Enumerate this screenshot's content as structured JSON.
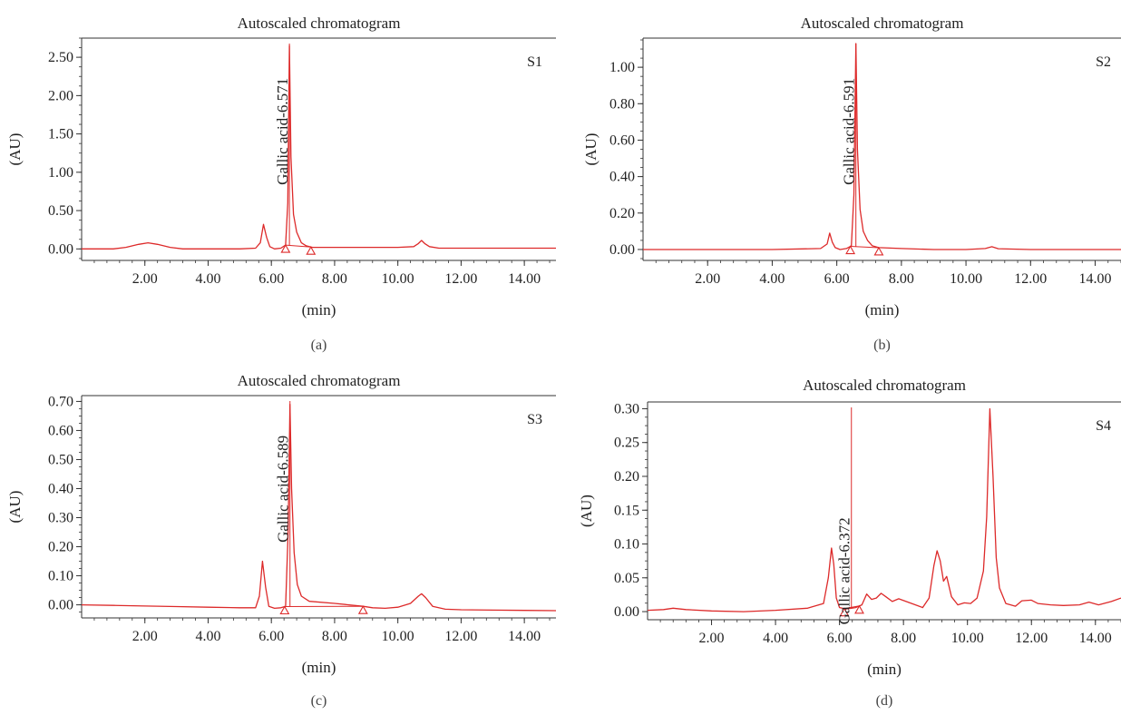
{
  "chart_data": [
    {
      "type": "line",
      "title": "Autoscaled chromatogram",
      "xlabel": "(min)",
      "ylabel": "(AU)",
      "panel_label": "(a)",
      "sample_label": "S1",
      "xlim": [
        0,
        15
      ],
      "ylim": [
        -0.15,
        2.75
      ],
      "xticks": [
        2,
        4,
        6,
        8,
        10,
        12,
        14
      ],
      "xtick_labels": [
        "2.00",
        "4.00",
        "6.00",
        "8.00",
        "10.00",
        "12.00",
        "14.00"
      ],
      "yticks": [
        0,
        0.5,
        1.0,
        1.5,
        2.0,
        2.5
      ],
      "ytick_labels": [
        "0.00",
        "0.50",
        "1.00",
        "1.50",
        "2.00",
        "2.50"
      ],
      "peak_annotation": {
        "text": "Gallic acid-6.571",
        "x": 6.571
      },
      "markers": [
        6.45,
        7.25
      ],
      "series": [
        {
          "x": [
            0,
            0.6,
            1.0,
            1.4,
            1.8,
            2.1,
            2.4,
            2.8,
            3.2,
            4.0,
            5.0,
            5.5,
            5.65,
            5.75,
            5.85,
            5.95,
            6.1,
            6.3,
            6.45,
            6.52,
            6.571,
            6.62,
            6.7,
            6.8,
            6.95,
            7.1,
            7.3,
            8.0,
            9.0,
            10.0,
            10.5,
            10.65,
            10.75,
            10.85,
            11.0,
            11.3,
            12.0,
            13.0,
            14.0,
            15.0
          ],
          "y": [
            0.0,
            0.0,
            0.0,
            0.02,
            0.06,
            0.08,
            0.06,
            0.02,
            0.0,
            0.0,
            0.0,
            0.01,
            0.08,
            0.32,
            0.15,
            0.03,
            0.0,
            0.01,
            0.05,
            0.6,
            2.65,
            1.2,
            0.45,
            0.22,
            0.08,
            0.04,
            0.02,
            0.02,
            0.02,
            0.02,
            0.03,
            0.07,
            0.11,
            0.07,
            0.03,
            0.01,
            0.01,
            0.01,
            0.01,
            0.01
          ]
        }
      ]
    },
    {
      "type": "line",
      "title": "Autoscaled chromatogram",
      "xlabel": "(min)",
      "ylabel": "(AU)",
      "panel_label": "(b)",
      "sample_label": "S2",
      "xlim": [
        0,
        14.8
      ],
      "ylim": [
        -0.06,
        1.16
      ],
      "xticks": [
        2,
        4,
        6,
        8,
        10,
        12,
        14
      ],
      "xtick_labels": [
        "2.00",
        "4.00",
        "6.00",
        "8.00",
        "10.00",
        "12.00",
        "14.00"
      ],
      "yticks": [
        0,
        0.2,
        0.4,
        0.6,
        0.8,
        1.0
      ],
      "ytick_labels": [
        "0.00",
        "0.20",
        "0.40",
        "0.60",
        "0.80",
        "1.00"
      ],
      "peak_annotation": {
        "text": "Gallic acid-6.591",
        "x": 6.591
      },
      "markers": [
        6.42,
        7.3
      ],
      "series": [
        {
          "x": [
            0,
            2.0,
            4.0,
            5.5,
            5.7,
            5.78,
            5.86,
            5.95,
            6.1,
            6.3,
            6.45,
            6.53,
            6.591,
            6.64,
            6.72,
            6.82,
            6.95,
            7.1,
            7.3,
            8.0,
            9.0,
            10.0,
            10.6,
            10.8,
            11.0,
            12.0,
            13.0,
            14.8
          ],
          "y": [
            0.0,
            0.0,
            0.0,
            0.005,
            0.03,
            0.09,
            0.04,
            0.01,
            0.0,
            0.005,
            0.02,
            0.3,
            1.13,
            0.55,
            0.22,
            0.1,
            0.05,
            0.02,
            0.01,
            0.005,
            0.0,
            0.0,
            0.005,
            0.015,
            0.004,
            0.0,
            0.0,
            0.0
          ]
        }
      ]
    },
    {
      "type": "line",
      "title": "Autoscaled chromatogram",
      "xlabel": "(min)",
      "ylabel": "(AU)",
      "panel_label": "(c)",
      "sample_label": "S3",
      "xlim": [
        0,
        15
      ],
      "ylim": [
        -0.045,
        0.72
      ],
      "xticks": [
        2,
        4,
        6,
        8,
        10,
        12,
        14
      ],
      "xtick_labels": [
        "2.00",
        "4.00",
        "6.00",
        "8.00",
        "10.00",
        "12.00",
        "14.00"
      ],
      "yticks": [
        0,
        0.1,
        0.2,
        0.3,
        0.4,
        0.5,
        0.6,
        0.7
      ],
      "ytick_labels": [
        "0.00",
        "0.10",
        "0.20",
        "0.30",
        "0.40",
        "0.50",
        "0.60",
        "0.70"
      ],
      "peak_annotation": {
        "text": "Gallic acid-6.589",
        "x": 6.589
      },
      "markers": [
        6.42,
        8.9
      ],
      "series": [
        {
          "x": [
            0,
            1.0,
            2.0,
            3.0,
            4.0,
            5.0,
            5.5,
            5.62,
            5.72,
            5.82,
            5.92,
            6.1,
            6.3,
            6.45,
            6.53,
            6.589,
            6.64,
            6.72,
            6.82,
            6.95,
            7.2,
            8.0,
            8.9,
            9.2,
            9.6,
            10.0,
            10.4,
            10.65,
            10.75,
            10.88,
            11.1,
            11.5,
            12.0,
            13.0,
            14.0,
            15.0
          ],
          "y": [
            0.0,
            -0.002,
            -0.004,
            -0.006,
            -0.008,
            -0.01,
            -0.01,
            0.03,
            0.15,
            0.06,
            -0.005,
            -0.012,
            -0.01,
            -0.005,
            0.25,
            0.69,
            0.4,
            0.18,
            0.07,
            0.03,
            0.012,
            0.005,
            -0.005,
            -0.01,
            -0.012,
            -0.008,
            0.005,
            0.03,
            0.038,
            0.025,
            -0.005,
            -0.015,
            -0.017,
            -0.018,
            -0.019,
            -0.02
          ]
        }
      ]
    },
    {
      "type": "line",
      "title": "Autoscaled chromatogram",
      "xlabel": "(min)",
      "ylabel": "(AU)",
      "panel_label": "(d)",
      "sample_label": "S4",
      "xlim": [
        0,
        14.8
      ],
      "ylim": [
        -0.012,
        0.31
      ],
      "xticks": [
        2,
        4,
        6,
        8,
        10,
        12,
        14
      ],
      "xtick_labels": [
        "2.00",
        "4.00",
        "6.00",
        "8.00",
        "10.00",
        "12.00",
        "14.00"
      ],
      "yticks": [
        0,
        0.05,
        0.1,
        0.15,
        0.2,
        0.25,
        0.3
      ],
      "ytick_labels": [
        "0.00",
        "0.05",
        "0.10",
        "0.15",
        "0.20",
        "0.25",
        "0.30"
      ],
      "peak_annotation": {
        "text": "Gallic acid-6.372",
        "x": 6.372
      },
      "markers": [
        6.15,
        6.62
      ],
      "series": [
        {
          "x": [
            0,
            0.5,
            0.8,
            1.2,
            2.0,
            3.0,
            4.0,
            5.0,
            5.5,
            5.65,
            5.75,
            5.82,
            5.9,
            6.0,
            6.2,
            6.372,
            6.5,
            6.7,
            6.85,
            7.0,
            7.15,
            7.3,
            7.45,
            7.65,
            7.85,
            8.2,
            8.6,
            8.8,
            8.95,
            9.05,
            9.15,
            9.25,
            9.35,
            9.5,
            9.7,
            9.9,
            10.1,
            10.3,
            10.5,
            10.6,
            10.7,
            10.8,
            10.9,
            11.0,
            11.2,
            11.5,
            11.7,
            12.0,
            12.2,
            12.6,
            13.0,
            13.5,
            13.8,
            14.1,
            14.5,
            14.8
          ],
          "y": [
            0.002,
            0.003,
            0.005,
            0.003,
            0.001,
            0.0,
            0.002,
            0.005,
            0.012,
            0.05,
            0.094,
            0.07,
            0.02,
            0.006,
            0.004,
            0.005,
            0.006,
            0.01,
            0.026,
            0.018,
            0.02,
            0.027,
            0.022,
            0.015,
            0.019,
            0.013,
            0.006,
            0.02,
            0.068,
            0.09,
            0.075,
            0.045,
            0.052,
            0.022,
            0.01,
            0.013,
            0.012,
            0.02,
            0.06,
            0.14,
            0.3,
            0.2,
            0.08,
            0.035,
            0.012,
            0.008,
            0.016,
            0.017,
            0.012,
            0.01,
            0.009,
            0.01,
            0.014,
            0.01,
            0.015,
            0.02
          ]
        }
      ]
    }
  ]
}
